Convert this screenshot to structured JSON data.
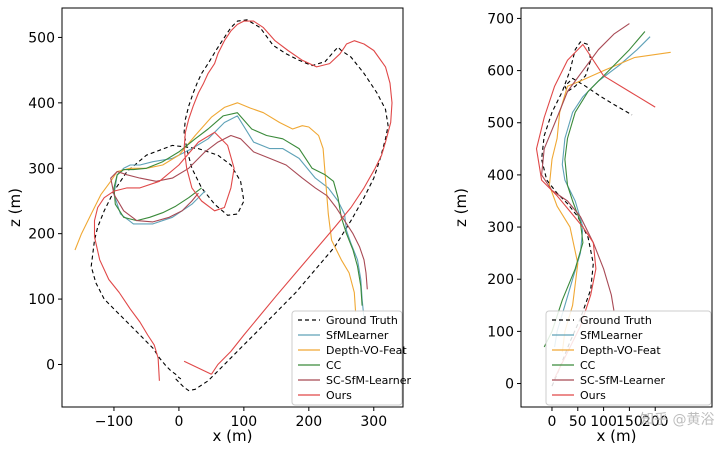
{
  "chart_data": [
    {
      "type": "line",
      "xlabel": "x (m)",
      "ylabel": "z (m)",
      "xlim": [
        -180,
        345
      ],
      "ylim": [
        -65,
        545
      ],
      "xticks": [
        -100,
        0,
        100,
        200,
        300
      ],
      "yticks": [
        0,
        100,
        200,
        300,
        400,
        500
      ],
      "grid": false,
      "legend_position": "bottom-right",
      "series": [
        {
          "name": "Ground Truth",
          "color": "#000000",
          "dash": "4,3",
          "x": [
            -5,
            8,
            15,
            25,
            45,
            70,
            95,
            120,
            150,
            180,
            210,
            240,
            265,
            285,
            300,
            310,
            318,
            322,
            318,
            305,
            285,
            265,
            250,
            245,
            240,
            225,
            205,
            185,
            165,
            145,
            125,
            105,
            90,
            80,
            70,
            57,
            45,
            35,
            28,
            22,
            15,
            10,
            8,
            12,
            20,
            35,
            55,
            75,
            90,
            100,
            95,
            80,
            60,
            30,
            -10,
            -50,
            -80,
            -100,
            -115,
            -125,
            -130,
            -135,
            -128,
            -115,
            -95,
            -75,
            -55,
            -40,
            -30,
            -20,
            -12,
            -5,
            0,
            3
          ],
          "y": [
            -22,
            -35,
            -40,
            -38,
            -25,
            0,
            25,
            50,
            80,
            110,
            145,
            180,
            220,
            255,
            285,
            315,
            345,
            365,
            390,
            415,
            445,
            470,
            480,
            485,
            480,
            463,
            457,
            465,
            475,
            488,
            515,
            527,
            525,
            515,
            500,
            480,
            460,
            445,
            430,
            415,
            395,
            375,
            355,
            330,
            300,
            270,
            245,
            228,
            230,
            250,
            280,
            305,
            320,
            330,
            335,
            320,
            295,
            265,
            235,
            210,
            190,
            150,
            125,
            100,
            80,
            60,
            40,
            25,
            10,
            -2,
            -10,
            -15,
            -20,
            -22
          ]
        },
        {
          "name": "SfMLearner",
          "color": "#5fa2b8",
          "dash": "",
          "x": [
            285,
            282,
            280,
            275,
            265,
            258,
            255,
            245,
            230,
            210,
            185,
            160,
            140,
            115,
            90,
            70,
            45,
            20,
            -10,
            -40,
            -60,
            -75,
            -85,
            -95,
            -100,
            -90,
            -70,
            -40,
            -10,
            20,
            40
          ],
          "y": [
            70,
            100,
            130,
            160,
            185,
            205,
            230,
            250,
            270,
            285,
            315,
            330,
            330,
            340,
            380,
            370,
            345,
            330,
            315,
            310,
            305,
            305,
            300,
            290,
            260,
            230,
            215,
            215,
            225,
            245,
            265
          ]
        },
        {
          "name": "Depth-VO-Feat",
          "color": "#f0a834",
          "dash": "",
          "x": [
            272,
            270,
            262,
            250,
            235,
            230,
            226,
            222,
            215,
            200,
            190,
            175,
            155,
            130,
            110,
            90,
            70,
            50,
            25,
            0,
            -25,
            -50,
            -75,
            -95,
            -105,
            -120,
            -135,
            -150,
            -160
          ],
          "y": [
            80,
            110,
            140,
            160,
            190,
            230,
            280,
            330,
            350,
            363,
            365,
            360,
            370,
            385,
            392,
            400,
            393,
            378,
            350,
            320,
            305,
            300,
            300,
            295,
            280,
            260,
            230,
            200,
            175
          ]
        },
        {
          "name": "CC",
          "color": "#3a8a3a",
          "dash": "",
          "x": [
            282,
            280,
            275,
            268,
            258,
            250,
            245,
            238,
            225,
            205,
            185,
            160,
            135,
            112,
            90,
            68,
            45,
            25,
            0,
            -25,
            -50,
            -70,
            -85,
            -95,
            -100,
            -98,
            -85,
            -65,
            -45,
            -25,
            -5,
            15,
            35
          ],
          "y": [
            90,
            120,
            150,
            175,
            200,
            225,
            255,
            280,
            290,
            300,
            330,
            345,
            350,
            360,
            385,
            380,
            360,
            345,
            325,
            310,
            300,
            298,
            298,
            290,
            270,
            245,
            225,
            220,
            225,
            232,
            242,
            255,
            270
          ]
        },
        {
          "name": "SC-SfM-Learner",
          "color": "#a84a55",
          "dash": "",
          "x": [
            290,
            288,
            285,
            278,
            268,
            255,
            242,
            228,
            210,
            190,
            165,
            140,
            115,
            95,
            80,
            60,
            40,
            15,
            -10,
            -35,
            -60,
            -80,
            -95,
            -105,
            -100,
            -85,
            -65,
            -40,
            -15,
            5,
            20,
            30
          ],
          "y": [
            115,
            140,
            160,
            180,
            200,
            220,
            240,
            258,
            270,
            285,
            305,
            315,
            325,
            345,
            350,
            340,
            325,
            300,
            285,
            280,
            285,
            290,
            295,
            285,
            260,
            235,
            220,
            218,
            225,
            235,
            250,
            262
          ]
        },
        {
          "name": "Ours",
          "color": "#e04848",
          "dash": "",
          "x": [
            50,
            60,
            80,
            100,
            125,
            150,
            180,
            210,
            240,
            265,
            285,
            302,
            312,
            318,
            322,
            326,
            328,
            325,
            318,
            300,
            285,
            270,
            258,
            255,
            248,
            232,
            212,
            190,
            168,
            148,
            130,
            115,
            100,
            90,
            80,
            70,
            60,
            55,
            45,
            38,
            30,
            22,
            15,
            10,
            8,
            12,
            20,
            35,
            55,
            70,
            80,
            85,
            75,
            55,
            30,
            0,
            -30,
            -60,
            -80,
            -100,
            -115,
            -125,
            -130,
            -130,
            -122,
            -108,
            -92,
            -75,
            -60,
            -48,
            -38,
            -32,
            -30
          ],
          "y": [
            -15,
            0,
            20,
            45,
            75,
            105,
            140,
            175,
            210,
            240,
            270,
            300,
            320,
            340,
            355,
            370,
            400,
            430,
            455,
            480,
            490,
            495,
            490,
            485,
            475,
            460,
            455,
            465,
            480,
            495,
            515,
            525,
            525,
            520,
            510,
            495,
            475,
            460,
            445,
            430,
            415,
            395,
            375,
            355,
            330,
            300,
            270,
            250,
            235,
            240,
            270,
            300,
            335,
            355,
            340,
            305,
            280,
            270,
            270,
            265,
            255,
            240,
            220,
            195,
            160,
            130,
            110,
            85,
            65,
            45,
            30,
            10,
            -25
          ]
        }
      ],
      "extra_segments": [
        {
          "name": "Ours",
          "color": "#e04848",
          "x": [
            50,
            8
          ],
          "y": [
            -15,
            5
          ]
        }
      ]
    },
    {
      "type": "line",
      "xlabel": "x (m)",
      "ylabel": "z (m)",
      "xlim": [
        -60,
        310
      ],
      "ylim": [
        -45,
        720
      ],
      "xticks": [
        0,
        50,
        100,
        150,
        200
      ],
      "xtick_labels": [
        "0",
        "50",
        "100",
        "150",
        "200"
      ],
      "yticks": [
        0,
        100,
        200,
        300,
        400,
        500,
        600,
        700
      ],
      "grid": false,
      "legend_position": "bottom-right",
      "series": [
        {
          "name": "Ground Truth",
          "color": "#000000",
          "dash": "4,3",
          "x": [
            0,
            15,
            35,
            55,
            75,
            80,
            70,
            50,
            30,
            10,
            -10,
            -20,
            -15,
            0,
            20,
            35,
            45,
            55,
            70,
            75,
            65,
            45,
            30,
            25,
            40,
            65,
            95,
            120,
            155
          ],
          "y": [
            -5,
            30,
            80,
            125,
            180,
            230,
            280,
            320,
            345,
            365,
            390,
            430,
            475,
            520,
            560,
            600,
            640,
            655,
            650,
            620,
            590,
            570,
            560,
            570,
            585,
            570,
            550,
            535,
            515
          ]
        },
        {
          "name": "SfMLearner",
          "color": "#5fa2b8",
          "dash": "",
          "x": [
            5,
            10,
            25,
            40,
            55,
            60,
            45,
            25,
            20,
            25,
            40,
            60,
            90,
            130,
            165,
            190
          ],
          "y": [
            70,
            100,
            150,
            200,
            250,
            300,
            350,
            390,
            420,
            470,
            520,
            550,
            580,
            610,
            640,
            665
          ]
        },
        {
          "name": "Depth-VO-Feat",
          "color": "#f0a834",
          "dash": "",
          "x": [
            20,
            25,
            40,
            50,
            35,
            10,
            -5,
            0,
            10,
            15,
            30,
            55,
            100,
            160,
            230
          ],
          "y": [
            60,
            100,
            150,
            230,
            300,
            340,
            380,
            430,
            470,
            520,
            570,
            580,
            600,
            625,
            635
          ]
        },
        {
          "name": "CC",
          "color": "#3a8a3a",
          "dash": "",
          "x": [
            -15,
            0,
            20,
            45,
            60,
            55,
            40,
            30,
            25,
            30,
            45,
            70,
            110,
            150,
            180
          ],
          "y": [
            70,
            100,
            160,
            220,
            270,
            310,
            350,
            380,
            430,
            470,
            520,
            560,
            600,
            640,
            675
          ]
        },
        {
          "name": "SC-SfM-Learner",
          "color": "#a84a55",
          "dash": "",
          "x": [
            120,
            115,
            100,
            80,
            55,
            30,
            0,
            -20,
            -15,
            10,
            30,
            60,
            90,
            120,
            150
          ],
          "y": [
            140,
            170,
            220,
            270,
            320,
            350,
            370,
            400,
            450,
            510,
            560,
            600,
            640,
            670,
            690
          ]
        },
        {
          "name": "Ours",
          "color": "#e04848",
          "dash": "",
          "x": [
            5,
            30,
            55,
            75,
            85,
            80,
            60,
            35,
            10,
            -20,
            -30,
            -15,
            5,
            30,
            60,
            100,
            150,
            200
          ],
          "y": [
            10,
            60,
            110,
            170,
            220,
            270,
            300,
            330,
            360,
            390,
            450,
            510,
            570,
            620,
            650,
            590,
            560,
            530
          ]
        }
      ]
    }
  ],
  "legend_labels": [
    "Ground Truth",
    "SfMLearner",
    "Depth-VO-Feat",
    "CC",
    "SC-SfM-Learner",
    "Ours"
  ],
  "watermark": "知乎 @黄浴"
}
